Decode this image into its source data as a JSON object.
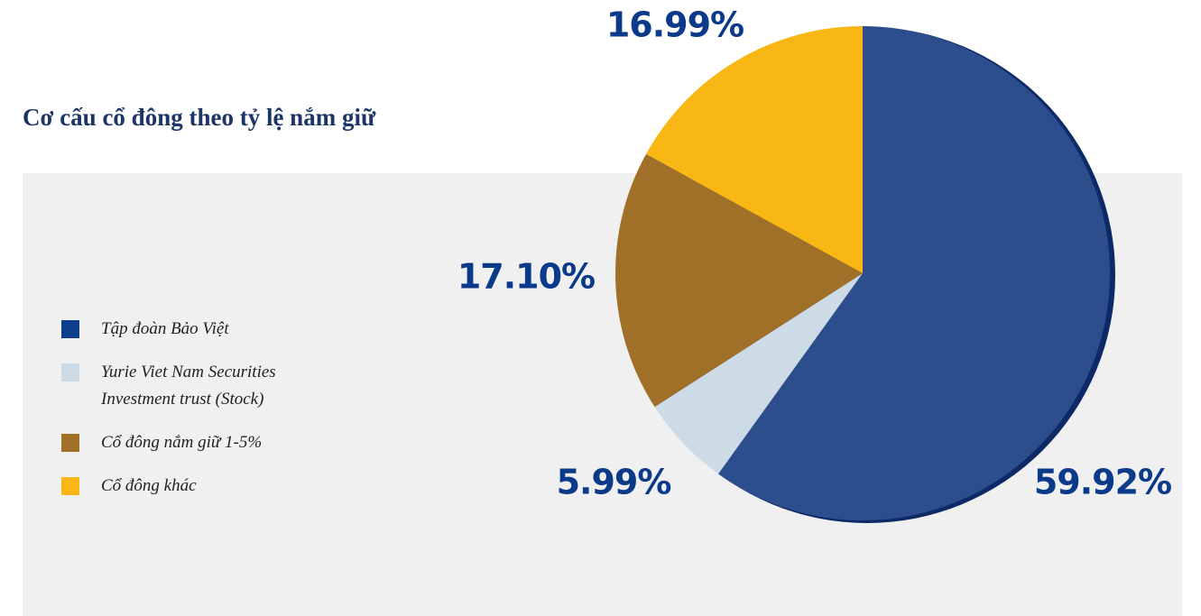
{
  "chart_data": {
    "type": "pie",
    "title": "Cơ cấu cổ đông theo tỷ lệ nắm giữ",
    "categories": [
      "Tập đoàn Bảo Việt",
      "Yurie Viet Nam Securities Investment trust (Stock)",
      "Cổ đông nắm giữ 1-5%",
      "Cổ đông khác"
    ],
    "values": [
      59.92,
      5.99,
      17.1,
      16.99
    ],
    "value_labels": [
      "59.92%",
      "5.99%",
      "17.10%",
      "16.99%"
    ],
    "colors": [
      "#2d4e8c",
      "#cddbe6",
      "#a06f28",
      "#f9b715"
    ],
    "legend_colors": [
      "#0d3f8c",
      "#cddbe6",
      "#a06f28",
      "#f9b715"
    ]
  }
}
